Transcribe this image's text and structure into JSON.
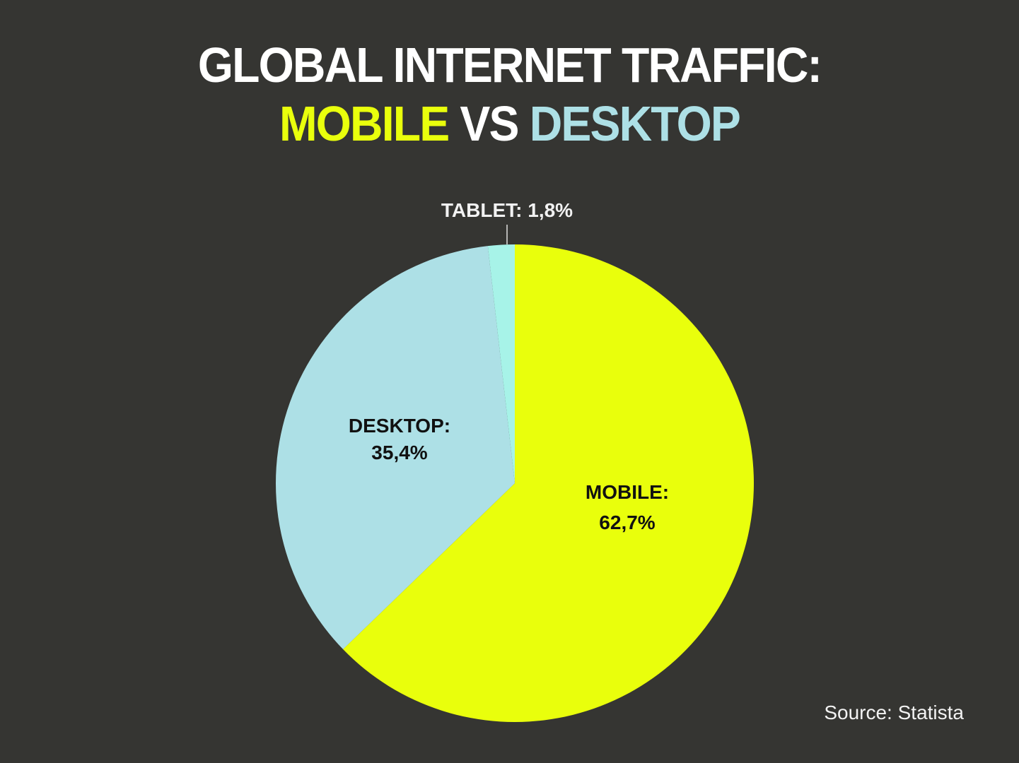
{
  "title": {
    "line1": "GLOBAL INTERNET TRAFFIC:",
    "line2_part1": "MOBILE",
    "line2_part2": "VS",
    "line2_part3": "DESKTOP"
  },
  "source": "Source: Statista",
  "colors": {
    "background": "#353532",
    "mobile": "#e9ff0c",
    "desktop": "#ade0e6",
    "tablet": "#a7f3e8",
    "title": "#ffffff"
  },
  "labels": {
    "mobile_name": "MOBILE:",
    "mobile_value": "62,7%",
    "desktop_name": "DESKTOP:",
    "desktop_value": "35,4%",
    "tablet": "TABLET: 1,8%"
  },
  "chart_data": {
    "type": "pie",
    "title": "GLOBAL INTERNET TRAFFIC: MOBILE VS DESKTOP",
    "categories": [
      "Mobile",
      "Desktop",
      "Tablet"
    ],
    "values": [
      62.7,
      35.4,
      1.8
    ],
    "colors": [
      "#e9ff0c",
      "#ade0e6",
      "#a7f3e8"
    ],
    "start_angle": "12 o'clock, clockwise",
    "legend": "none (inline labels)",
    "source": "Statista"
  }
}
